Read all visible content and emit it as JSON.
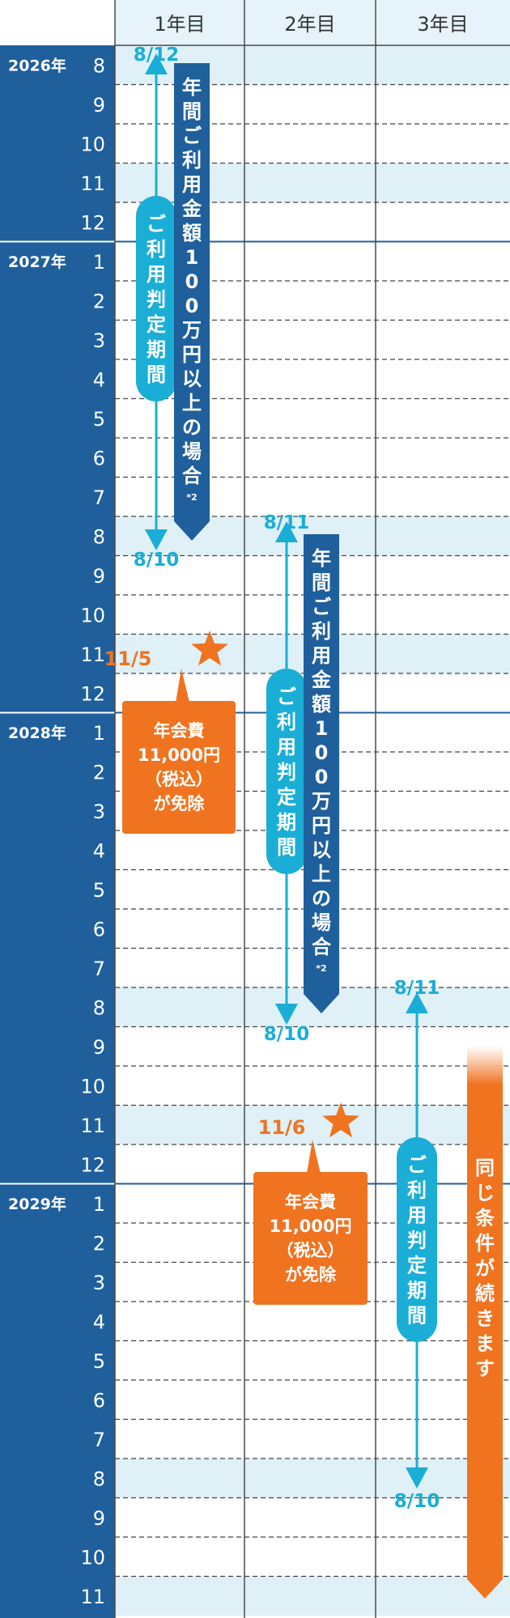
{
  "colors": {
    "navy": "#1f5f9c",
    "highlight": "#dff0f7",
    "headerBg": "#e6f3fa",
    "cyan": "#1aaed6",
    "orange": "#f07320",
    "rowLine": "#444444",
    "colLine": "#4a4a4a"
  },
  "columns": [
    "1年目",
    "2年目",
    "3年目"
  ],
  "years": [
    "2026年",
    "2027年",
    "2028年",
    "2029年"
  ],
  "months": [
    "8",
    "9",
    "10",
    "11",
    "12",
    "1",
    "2",
    "3",
    "4",
    "5",
    "6",
    "7",
    "8",
    "9",
    "10",
    "11",
    "12",
    "1",
    "2",
    "3",
    "4",
    "5",
    "6",
    "7",
    "8",
    "9",
    "10",
    "11",
    "12",
    "1",
    "2",
    "3",
    "4",
    "5",
    "6",
    "7",
    "8",
    "9",
    "10",
    "11"
  ],
  "highlight_months": [
    "8",
    "11"
  ],
  "periods": [
    {
      "column": 1,
      "start_label": "8/12",
      "end_label": "8/10",
      "pill_label": "ご利用判定期間"
    },
    {
      "column": 2,
      "start_label": "8/11",
      "end_label": "8/10",
      "pill_label": "ご利用判定期間"
    },
    {
      "column": 3,
      "start_label": "8/11",
      "end_label": "8/10",
      "pill_label": "ご利用判定期間"
    }
  ],
  "usage_banners": [
    {
      "column": 1,
      "text": "年間ご利用金額100万円以上の場合",
      "note": "*2"
    },
    {
      "column": 2,
      "text": "年間ご利用金額100万円以上の場合",
      "note": "*2"
    }
  ],
  "waivers": [
    {
      "column": 1,
      "date": "11/5",
      "lines": [
        "年会費",
        "11,000円",
        "（税込）",
        "が免除"
      ]
    },
    {
      "column": 2,
      "date": "11/6",
      "lines": [
        "年会費",
        "11,000円",
        "（税込）",
        "が免除"
      ]
    }
  ],
  "continue_text": "同じ条件が続きます"
}
